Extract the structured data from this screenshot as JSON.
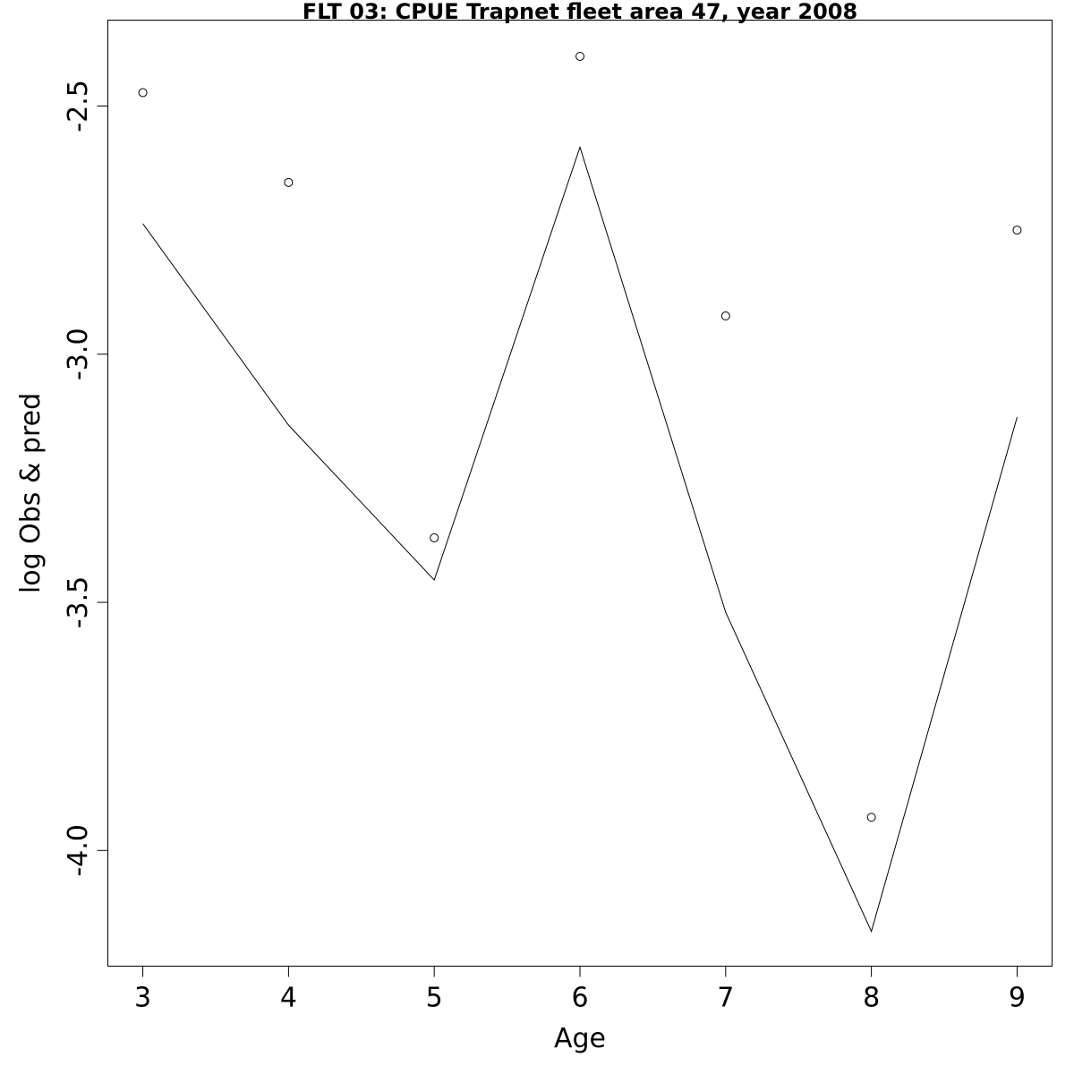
{
  "chart_data": {
    "type": "line",
    "title": "FLT 03: CPUE Trapnet fleet area 47, year 2008",
    "xlabel": "Age",
    "ylabel": "log Obs & pred",
    "xlim": [
      2.76,
      9.24
    ],
    "ylim": [
      -4.233,
      -2.327
    ],
    "xticks": [
      3,
      4,
      5,
      6,
      7,
      8,
      9
    ],
    "xtick_labels": [
      "3",
      "4",
      "5",
      "6",
      "7",
      "8",
      "9"
    ],
    "yticks": [
      -2.5,
      -3.0,
      -3.5,
      -4.0
    ],
    "ytick_labels": [
      "-2.5",
      "-3.0",
      "-3.5",
      "-4.0"
    ],
    "grid": false,
    "series": [
      {
        "style": "points",
        "marker": "open-circle",
        "x": [
          3,
          4,
          5,
          6,
          7,
          8,
          9
        ],
        "values": [
          -2.473,
          -2.654,
          -3.37,
          -2.4,
          -2.923,
          -3.933,
          -2.75
        ]
      },
      {
        "style": "line",
        "x": [
          3,
          4,
          5,
          6,
          7,
          8,
          9
        ],
        "values": [
          -2.737,
          -3.143,
          -3.455,
          -2.583,
          -3.52,
          -4.163,
          -3.127
        ]
      }
    ]
  }
}
